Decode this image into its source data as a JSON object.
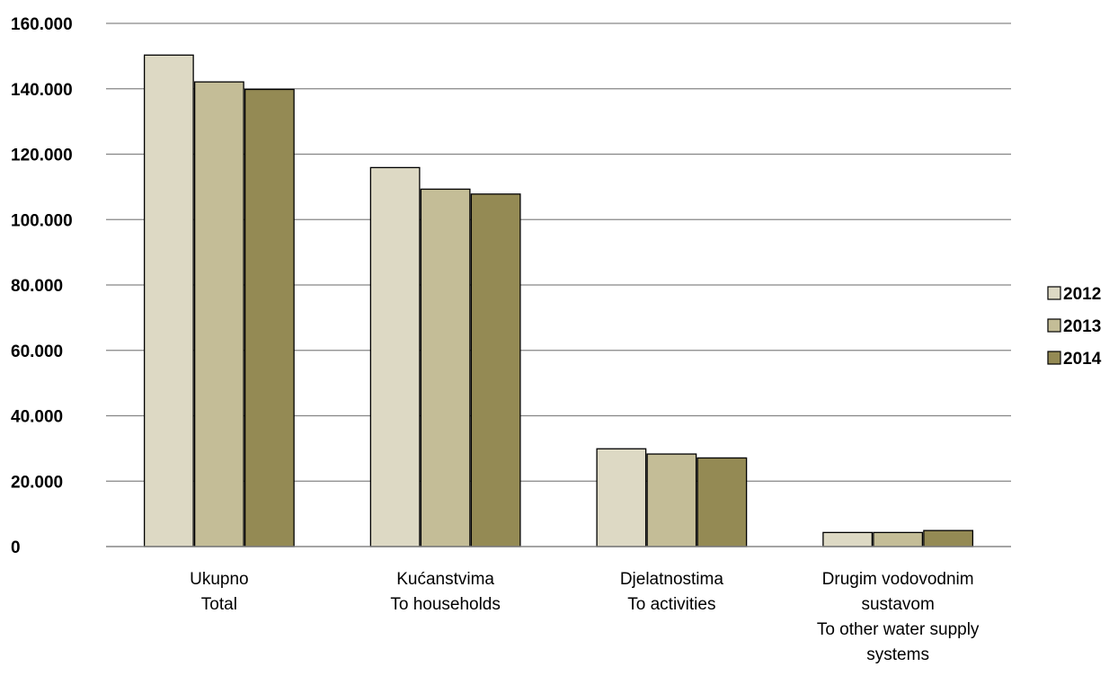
{
  "chart_data": {
    "type": "bar",
    "title": "",
    "xlabel": "",
    "ylabel": "",
    "ylim": [
      0,
      160000
    ],
    "y_ticks": [
      0,
      20000,
      40000,
      60000,
      80000,
      100000,
      120000,
      140000,
      160000
    ],
    "y_tick_labels": [
      "0",
      "20.000",
      "40.000",
      "60.000",
      "80.000",
      "100.000",
      "120.000",
      "140.000",
      "160.000"
    ],
    "grid": true,
    "legend_position": "right",
    "categories": [
      [
        "Ukupno",
        "Total"
      ],
      [
        "Kućanstvima",
        "To households"
      ],
      [
        "Djelatnostima",
        "To activities"
      ],
      [
        "Drugim vodovodnim",
        "sustavom",
        "To other water supply",
        "systems"
      ]
    ],
    "series": [
      {
        "name": "2012",
        "color": "#ddd9c4",
        "values": [
          150300,
          115900,
          29900,
          4300
        ]
      },
      {
        "name": "2013",
        "color": "#c4bd97",
        "values": [
          142100,
          109300,
          28300,
          4300
        ]
      },
      {
        "name": "2014",
        "color": "#948a54",
        "values": [
          139800,
          107800,
          27100,
          4900
        ]
      }
    ]
  }
}
